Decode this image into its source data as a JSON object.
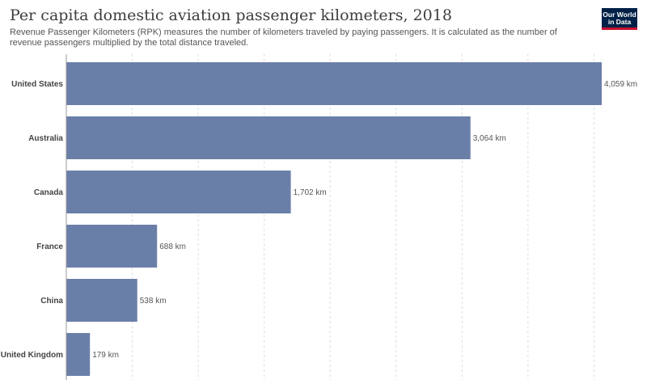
{
  "header": {
    "title": "Per capita domestic aviation passenger kilometers, 2018",
    "subtitle": "Revenue Passenger Kilometers (RPK) measures the number of kilometers traveled by paying passengers. It is calculated as the number of revenue passengers multiplied by the total distance traveled.",
    "logo_line1": "Our World",
    "logo_line2": "in Data"
  },
  "colors": {
    "bar": "#6a7fa8",
    "grid": "#dddddd",
    "logo_bg": "#002147",
    "logo_accent": "#c8102e"
  },
  "chart_data": {
    "type": "bar",
    "orientation": "horizontal",
    "categories": [
      "United States",
      "Australia",
      "Canada",
      "France",
      "China",
      "United Kingdom"
    ],
    "values": [
      4059,
      3064,
      1702,
      688,
      538,
      179
    ],
    "value_labels": [
      "4,059 km",
      "3,064 km",
      "1,702 km",
      "688 km",
      "538 km",
      "179 km"
    ],
    "unit": "km",
    "xlim": [
      0,
      4059
    ],
    "grid": true,
    "grid_step": 500
  }
}
